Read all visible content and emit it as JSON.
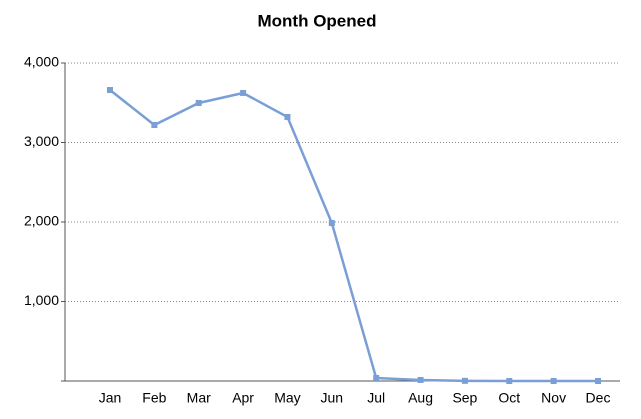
{
  "chart_data": {
    "type": "line",
    "title": "Month Opened",
    "categories": [
      "Jan",
      "Feb",
      "Mar",
      "Apr",
      "May",
      "Jun",
      "Jul",
      "Aug",
      "Sep",
      "Oct",
      "Nov",
      "Dec"
    ],
    "series": [
      {
        "name": "Month Opened",
        "color": "#7a9fd6",
        "values": [
          3660,
          3220,
          3497,
          3623,
          3321,
          1987,
          38,
          13,
          2,
          0,
          0,
          0
        ]
      }
    ],
    "ylim": [
      0,
      4000
    ],
    "yticks": [
      {
        "value": 1000,
        "label": "1,000"
      },
      {
        "value": 2000,
        "label": "2,000"
      },
      {
        "value": 3000,
        "label": "3,000"
      },
      {
        "value": 4000,
        "label": "4,000"
      }
    ],
    "grid": true
  }
}
